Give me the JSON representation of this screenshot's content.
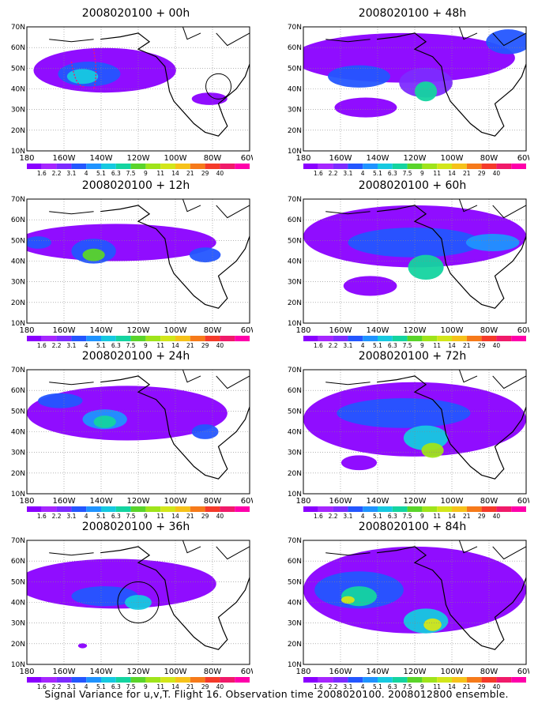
{
  "colors": {
    "levels": [
      "#8a00ff",
      "#a626ff",
      "#7d2bff",
      "#2456ff",
      "#1f93ff",
      "#16c9e0",
      "#14d4a0",
      "#5ad42a",
      "#9fe41a",
      "#d2e61a",
      "#f6c21a",
      "#f67a1a",
      "#f53a2a",
      "#f01a6a",
      "#ff00aa"
    ],
    "land": "#000000",
    "grid": "#888888"
  },
  "colorbar_labels": [
    "1.6",
    "2.2",
    "3.1",
    "4",
    "5.1",
    "6.3",
    "7.5",
    "9",
    "11",
    "14",
    "21",
    "29",
    "40"
  ],
  "y_labels": [
    "70N",
    "60N",
    "50N",
    "40N",
    "30N",
    "20N",
    "10N"
  ],
  "x_labels": [
    "180",
    "160W",
    "140W",
    "120W",
    "100W",
    "80W",
    "60W"
  ],
  "panels": [
    {
      "title": "2008020100 + 00h"
    },
    {
      "title": "2008020100 + 48h"
    },
    {
      "title": "2008020100 + 12h"
    },
    {
      "title": "2008020100 + 60h"
    },
    {
      "title": "2008020100 + 24h"
    },
    {
      "title": "2008020100 + 72h"
    },
    {
      "title": "2008020100 + 36h"
    },
    {
      "title": "2008020100 + 84h"
    }
  ],
  "caption": "Signal Variance for u,v,T. Flight 16. Observation time 2008020100. 2008012800 ensemble."
}
